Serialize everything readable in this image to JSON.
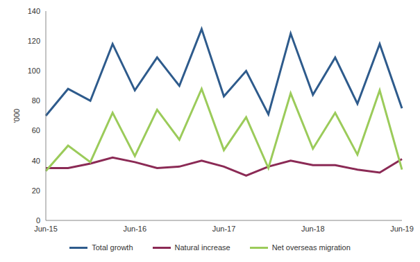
{
  "chart_data": {
    "type": "line",
    "y_label": "'000",
    "categories": [
      "Jun-15",
      null,
      null,
      null,
      "Jun-16",
      null,
      null,
      null,
      "Jun-17",
      null,
      null,
      null,
      "Jun-18",
      null,
      null,
      null,
      "Jun-19"
    ],
    "series": [
      {
        "name": "Total growth",
        "color": "#2e5b8c",
        "values": [
          70,
          88,
          80,
          118,
          87,
          109,
          90,
          128,
          83,
          100,
          71,
          125,
          84,
          109,
          78,
          118,
          75
        ]
      },
      {
        "name": "Natural increase",
        "color": "#8b2a55",
        "values": [
          35,
          35,
          38,
          42,
          39,
          35,
          36,
          40,
          36,
          30,
          36,
          40,
          37,
          37,
          34,
          32,
          41
        ]
      },
      {
        "name": "Net overseas migration",
        "color": "#9bcb5a",
        "values": [
          33,
          50,
          39,
          72,
          43,
          74,
          54,
          88,
          47,
          69,
          35,
          85,
          48,
          72,
          44,
          87,
          34
        ]
      }
    ],
    "ylim": [
      0,
      140
    ],
    "yticks": [
      0,
      20,
      40,
      60,
      80,
      100,
      120,
      140
    ],
    "grid": false,
    "legend": "bottom"
  }
}
